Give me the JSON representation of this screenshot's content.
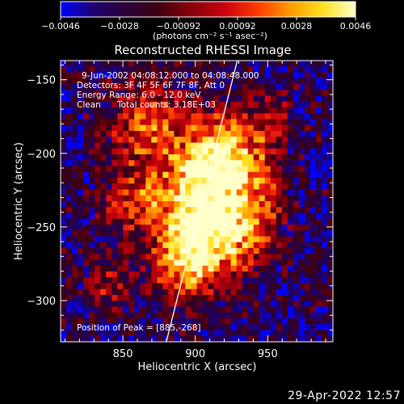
{
  "colorbar": {
    "ticks": [
      "-0.0046",
      "-0.0028",
      "-0.00092",
      "0.00092",
      "0.0028",
      "0.0046"
    ],
    "unit_label": "(photons cm⁻² s⁻¹ asec⁻²)",
    "range": [
      -0.0046,
      0.0046
    ],
    "palette": [
      "#0000ff",
      "#1e0070",
      "#2a0038",
      "#400010",
      "#8a0008",
      "#c80010",
      "#ff3a00",
      "#ff9a00",
      "#ffe020",
      "#ffffc8"
    ]
  },
  "annotations": {
    "time_range": "9-Jun-2002 04:08:12.000 to 04:08:48.000",
    "detectors": "Detectors: 3F 4F 5F 6F 7F 8F, Att 0",
    "energy": "Energy Range: 6.0 - 12.0 keV",
    "clean": "Clean",
    "total_counts": "Total counts: 3.18E+03",
    "peak": "Position of Peak = [885,-268]"
  },
  "timestamp": "29-Apr-2022 12:57",
  "chart_data": {
    "type": "heatmap",
    "title": "Reconstructed RHESSI Image",
    "xlabel": "Heliocentric X (arcsec)",
    "ylabel": "Heliocentric Y (arcsec)",
    "xlim": [
      807,
      995
    ],
    "ylim": [
      -328,
      -137
    ],
    "x_ticks": [
      850,
      900,
      950
    ],
    "y_ticks": [
      -300,
      -250,
      -200,
      -150
    ],
    "x_tick_labels": [
      "850",
      "900",
      "950"
    ],
    "y_tick_labels": [
      "−300",
      "−250",
      "−200",
      "−150"
    ],
    "grid": false,
    "limb_line": [
      [
        880,
        -328
      ],
      [
        929,
        -137
      ]
    ],
    "peak_position": [
      885,
      -268
    ],
    "blobs": [
      {
        "x": 905,
        "y": -225,
        "sx": 22,
        "sy": 28,
        "a": 1.0
      },
      {
        "x": 895,
        "y": -268,
        "sx": 18,
        "sy": 22,
        "a": 0.9
      },
      {
        "x": 920,
        "y": -198,
        "sx": 14,
        "sy": 18,
        "a": 0.7
      },
      {
        "x": 865,
        "y": -180,
        "sx": 18,
        "sy": 22,
        "a": 0.6
      },
      {
        "x": 928,
        "y": -255,
        "sx": 16,
        "sy": 18,
        "a": 0.55
      },
      {
        "x": 855,
        "y": -232,
        "sx": 14,
        "sy": 14,
        "a": 0.5
      },
      {
        "x": 945,
        "y": -220,
        "sx": 12,
        "sy": 28,
        "a": 0.45
      },
      {
        "x": 840,
        "y": -290,
        "sx": 12,
        "sy": 12,
        "a": 0.4
      },
      {
        "x": 955,
        "y": -175,
        "sx": 10,
        "sy": 10,
        "a": 0.35
      }
    ]
  }
}
